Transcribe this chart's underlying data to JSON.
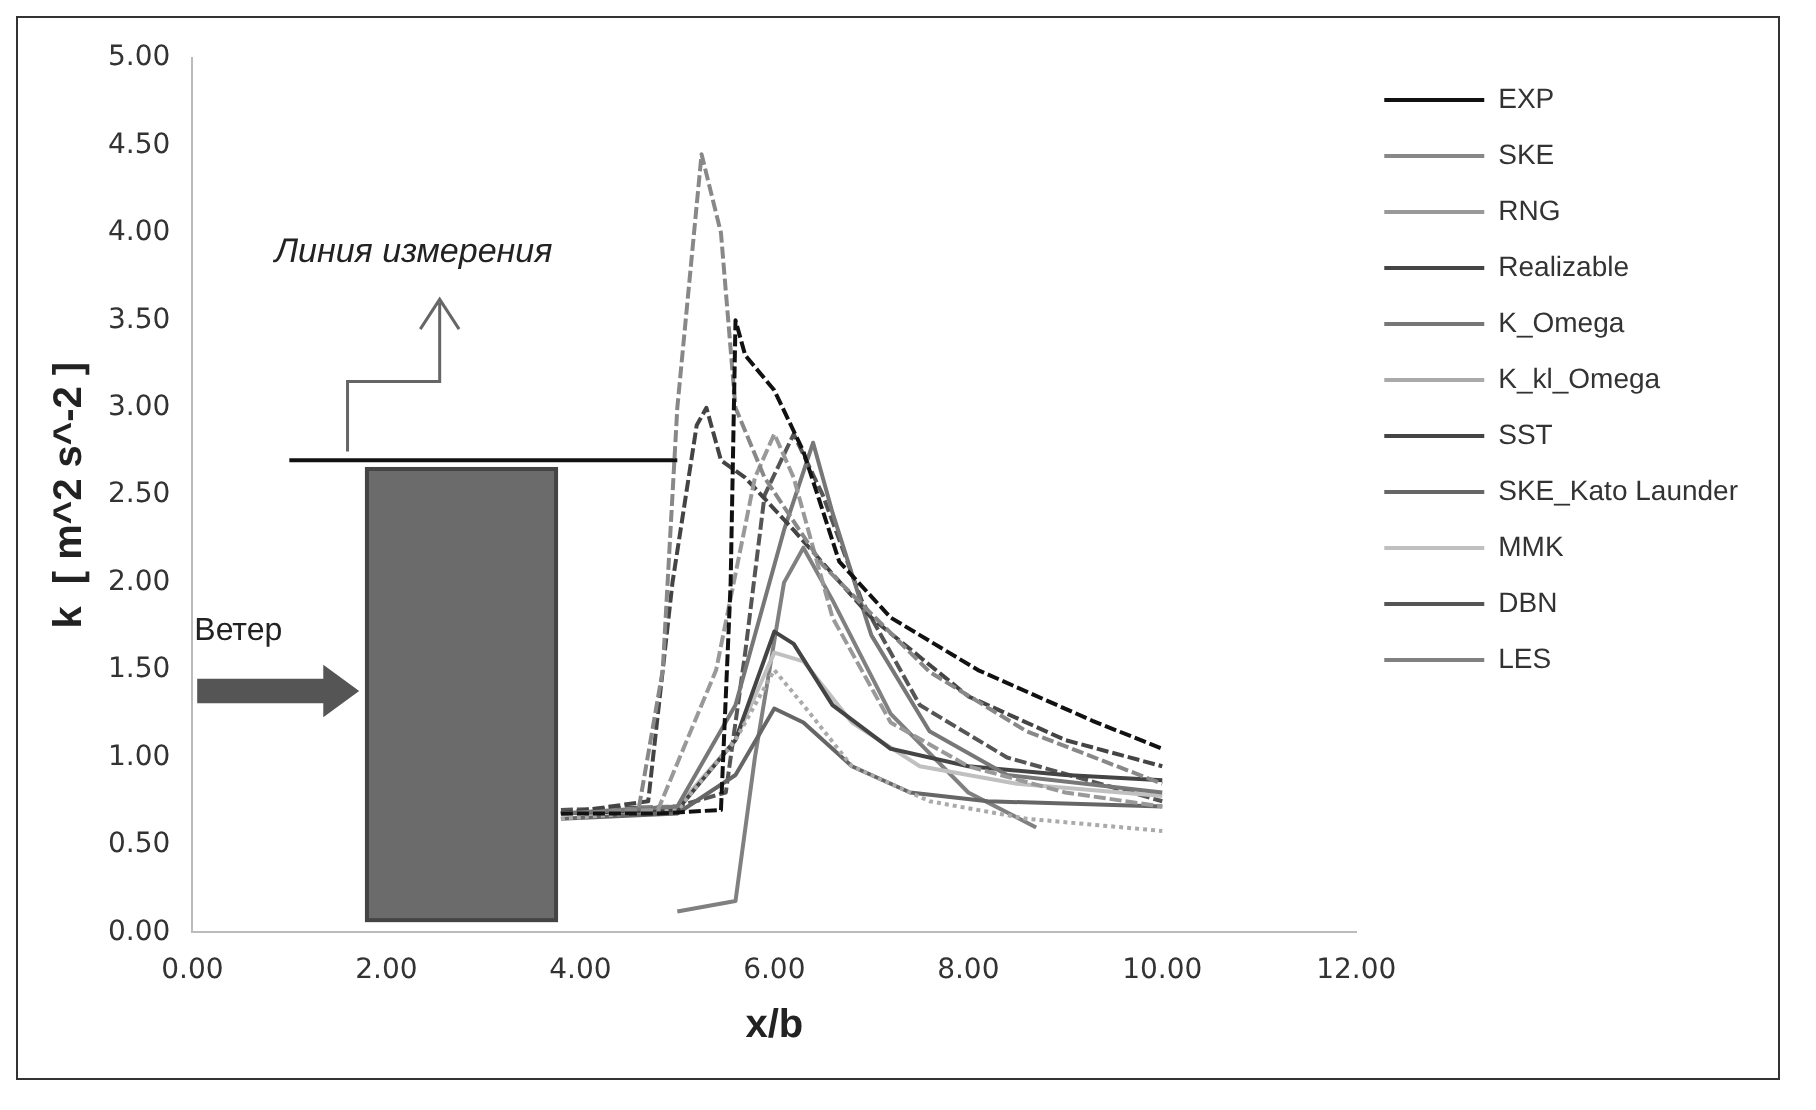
{
  "chart_data": {
    "type": "line",
    "xlabel": "x/b",
    "ylabel": "k  [ m^2 s^-2 ]",
    "annotations": [
      "Линия измерения",
      "Ветер"
    ],
    "xlim": [
      0,
      12
    ],
    "xticks": [
      {
        "value": 0,
        "label": "0.00"
      },
      {
        "value": 2,
        "label": "2.00"
      },
      {
        "value": 4,
        "label": "4.00"
      },
      {
        "value": 6,
        "label": "6.00"
      },
      {
        "value": 8,
        "label": "8.00"
      },
      {
        "value": 10,
        "label": "10.00"
      },
      {
        "value": 12,
        "label": "12.00"
      }
    ],
    "ylim": [
      0,
      5
    ],
    "yticks": [
      {
        "value": 0,
        "label": "0.00"
      },
      {
        "value": 0.5,
        "label": "0.50"
      },
      {
        "value": 1,
        "label": "1.00"
      },
      {
        "value": 1.5,
        "label": "1.50"
      },
      {
        "value": 2,
        "label": "2.00"
      },
      {
        "value": 2.5,
        "label": "2.50"
      },
      {
        "value": 3,
        "label": "3.00"
      },
      {
        "value": 3.5,
        "label": "3.50"
      },
      {
        "value": 4,
        "label": "4.00"
      },
      {
        "value": 4.5,
        "label": "4.50"
      },
      {
        "value": 5,
        "label": "5.00"
      }
    ],
    "grid": false,
    "legend": "right",
    "marker": "none",
    "series": [
      {
        "name": "EXP",
        "color": "#111111",
        "line_style": "dashed",
        "x": [
          3.8,
          4.8,
          5.45,
          5.55,
          5.6,
          5.7,
          6.0,
          6.3,
          6.67,
          7.2,
          8.1,
          9.28,
          10.0
        ],
        "values": [
          0.68,
          0.68,
          0.7,
          2.0,
          3.5,
          3.3,
          3.1,
          2.75,
          2.12,
          1.8,
          1.5,
          1.21,
          1.05
        ]
      },
      {
        "name": "SKE",
        "color": "#888888",
        "line_style": "dashed",
        "x": [
          3.8,
          4.6,
          4.85,
          5.0,
          5.25,
          5.45,
          5.6,
          5.9,
          6.5,
          7.6,
          8.6,
          10.0
        ],
        "values": [
          0.68,
          0.7,
          1.5,
          3.0,
          4.45,
          4.0,
          3.0,
          2.6,
          2.1,
          1.49,
          1.15,
          0.85
        ]
      },
      {
        "name": "RNG",
        "color": "#999999",
        "line_style": "dashed",
        "x": [
          3.8,
          4.8,
          5.4,
          5.8,
          6.0,
          6.2,
          6.6,
          7.2,
          8.0,
          9.0,
          10.0
        ],
        "values": [
          0.68,
          0.7,
          1.5,
          2.6,
          2.85,
          2.6,
          1.8,
          1.2,
          0.95,
          0.8,
          0.72
        ]
      },
      {
        "name": "Realizable",
        "color": "#444444",
        "line_style": "dashed",
        "x": [
          3.8,
          4.7,
          4.95,
          5.2,
          5.3,
          5.45,
          5.7,
          6.2,
          7.0,
          8.0,
          9.0,
          10.0
        ],
        "values": [
          0.68,
          0.75,
          2.0,
          2.9,
          3.0,
          2.7,
          2.6,
          2.3,
          1.8,
          1.35,
          1.1,
          0.95
        ]
      },
      {
        "name": "K_Omega",
        "color": "#777777",
        "line_style": "solid",
        "x": [
          3.8,
          5.0,
          5.6,
          6.1,
          6.4,
          6.6,
          7.0,
          7.6,
          8.4,
          10.0
        ],
        "values": [
          0.68,
          0.72,
          1.3,
          2.3,
          2.8,
          2.4,
          1.7,
          1.15,
          0.9,
          0.8
        ]
      },
      {
        "name": "K_kl_Omega",
        "color": "#aaaaaa",
        "line_style": "dotted",
        "x": [
          3.8,
          5.0,
          5.6,
          6.0,
          6.3,
          6.8,
          7.6,
          8.6,
          10.0
        ],
        "values": [
          0.65,
          0.7,
          1.1,
          1.5,
          1.3,
          0.95,
          0.75,
          0.65,
          0.58
        ]
      },
      {
        "name": "SST",
        "color": "#444444",
        "line_style": "solid",
        "x": [
          3.8,
          5.0,
          5.6,
          6.0,
          6.2,
          6.6,
          7.2,
          8.0,
          9.0,
          10.0
        ],
        "values": [
          0.68,
          0.7,
          1.1,
          1.72,
          1.65,
          1.3,
          1.05,
          0.95,
          0.9,
          0.87
        ]
      },
      {
        "name": "SKE_Kato Launder",
        "color": "#666666",
        "line_style": "solid",
        "x": [
          3.8,
          5.0,
          5.6,
          6.0,
          6.3,
          6.8,
          7.4,
          8.2,
          10.0
        ],
        "values": [
          0.65,
          0.68,
          0.9,
          1.28,
          1.2,
          0.95,
          0.8,
          0.75,
          0.72
        ]
      },
      {
        "name": "MMK",
        "color": "#c0c0c0",
        "line_style": "solid",
        "x": [
          3.8,
          5.0,
          5.6,
          6.0,
          6.3,
          6.8,
          7.5,
          8.5,
          10.0
        ],
        "values": [
          0.68,
          0.72,
          1.1,
          1.6,
          1.55,
          1.2,
          0.95,
          0.85,
          0.78
        ]
      },
      {
        "name": "DBN",
        "color": "#555555",
        "line_style": "dashed",
        "x": [
          3.8,
          5.0,
          5.5,
          5.7,
          5.9,
          6.2,
          6.5,
          6.9,
          7.5,
          8.4,
          10.0
        ],
        "values": [
          0.7,
          0.72,
          0.8,
          1.6,
          2.5,
          2.85,
          2.5,
          1.9,
          1.3,
          1.0,
          0.75
        ]
      },
      {
        "name": "LES",
        "color": "#808080",
        "line_style": "solid",
        "x": [
          5.0,
          5.6,
          5.8,
          6.1,
          6.3,
          6.6,
          7.2,
          8.0,
          8.7
        ],
        "values": [
          0.12,
          0.18,
          1.0,
          2.0,
          2.2,
          1.9,
          1.25,
          0.8,
          0.6
        ]
      }
    ]
  }
}
